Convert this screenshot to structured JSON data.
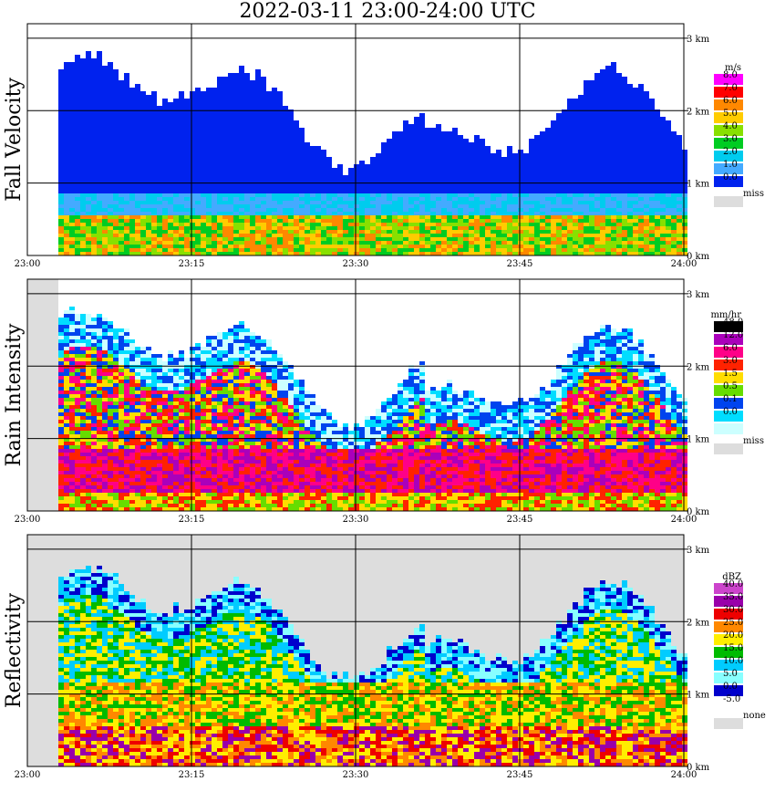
{
  "title": "2022-03-11   23:00-24:00 UTC",
  "chart_data": [
    {
      "type": "heatmap",
      "title": "Fall Velocity",
      "ylabel": "Fall Velocity",
      "x_ticks": [
        "23:00",
        "23:15",
        "23:30",
        "23:45",
        "24:00"
      ],
      "y_ticks": [
        "0 km",
        "1 km",
        "2 km",
        "3 km"
      ],
      "y_range_km": [
        0,
        3.2
      ],
      "legend_unit": "m/s",
      "legend": [
        {
          "label": "8.0",
          "color": "#ff00ff"
        },
        {
          "label": "7.0",
          "color": "#ff0000"
        },
        {
          "label": "6.0",
          "color": "#ff8800"
        },
        {
          "label": "5.0",
          "color": "#ffcc00"
        },
        {
          "label": "4.0",
          "color": "#88e000"
        },
        {
          "label": "3.0",
          "color": "#00cc22"
        },
        {
          "label": "2.0",
          "color": "#00ccee"
        },
        {
          "label": "1.0",
          "color": "#44aaff"
        },
        {
          "label": "0.0",
          "color": "#0022ee"
        },
        {
          "label": "miss",
          "color": "#dddddd"
        }
      ]
    },
    {
      "type": "heatmap",
      "title": "Rain Intensity",
      "ylabel": "Rain Intensity",
      "x_ticks": [
        "23:00",
        "23:15",
        "23:30",
        "23:45",
        "24:00"
      ],
      "y_ticks": [
        "0 km",
        "1 km",
        "2 km",
        "3 km"
      ],
      "y_range_km": [
        0,
        3.2
      ],
      "legend_unit": "mm/hr",
      "legend": [
        {
          "label": "48.0",
          "color": "#000000"
        },
        {
          "label": "12.0",
          "color": "#aa00bb"
        },
        {
          "label": "6.0",
          "color": "#ff0088"
        },
        {
          "label": "3.0",
          "color": "#ff2200"
        },
        {
          "label": "1.5",
          "color": "#ffdd00"
        },
        {
          "label": "0.5",
          "color": "#66dd00"
        },
        {
          "label": "0.1",
          "color": "#0044ee"
        },
        {
          "label": "0.0",
          "color": "#00ddff"
        },
        {
          "label": "",
          "color": "#ccffff"
        },
        {
          "label": "miss",
          "color": "#dddddd"
        }
      ]
    },
    {
      "type": "heatmap",
      "title": "Reflectivity",
      "ylabel": "Reflectivity",
      "x_ticks": [
        "23:00",
        "23:15",
        "23:30",
        "23:45",
        "24:00"
      ],
      "y_ticks": [
        "0 km",
        "1 km",
        "2 km",
        "3 km"
      ],
      "y_range_km": [
        0,
        3.2
      ],
      "legend_unit": "dBZ",
      "legend": [
        {
          "label": "40.0",
          "color": "#cc44cc"
        },
        {
          "label": "35.0",
          "color": "#9900aa"
        },
        {
          "label": "30.0",
          "color": "#ee0000"
        },
        {
          "label": "25.0",
          "color": "#ff8800"
        },
        {
          "label": "20.0",
          "color": "#ffee00"
        },
        {
          "label": "15.0",
          "color": "#00bb00"
        },
        {
          "label": "10.0",
          "color": "#00ccff"
        },
        {
          "label": "5.0",
          "color": "#88ffff"
        },
        {
          "label": "0.0",
          "color": "#0000cc"
        },
        {
          "label": "-5.0",
          "color": "#ffffff"
        },
        {
          "label": "none",
          "color": "#dddddd"
        }
      ]
    }
  ]
}
